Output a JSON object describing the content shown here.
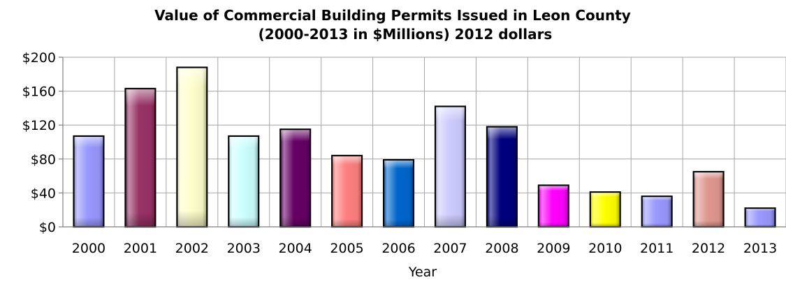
{
  "chart_data": {
    "type": "bar",
    "title": "Value of Commercial Building Permits Issued in Leon County",
    "subtitle": "(2000-2013 in $Millions) 2012 dollars",
    "xlabel": "Year",
    "ylabel": "",
    "categories": [
      "2000",
      "2001",
      "2002",
      "2003",
      "2004",
      "2005",
      "2006",
      "2007",
      "2008",
      "2009",
      "2010",
      "2011",
      "2012",
      "2013"
    ],
    "values": [
      107,
      163,
      188,
      107,
      115,
      84,
      79,
      142,
      118,
      49,
      41,
      36,
      65,
      22
    ],
    "ylim": [
      0,
      200
    ],
    "yticks": [
      0,
      40,
      80,
      120,
      160,
      200
    ],
    "ytick_labels": [
      "$0",
      "$40",
      "$80",
      "$120",
      "$160",
      "$200"
    ],
    "grid": true,
    "legend": "none",
    "colors": [
      "#9999ff",
      "#993366",
      "#ffffcc",
      "#ccffff",
      "#660066",
      "#ff8080",
      "#0066cc",
      "#ccccff",
      "#000080",
      "#ff00ff",
      "#ffff00",
      "#9999ff",
      "#e09890",
      "#9999ff"
    ]
  }
}
